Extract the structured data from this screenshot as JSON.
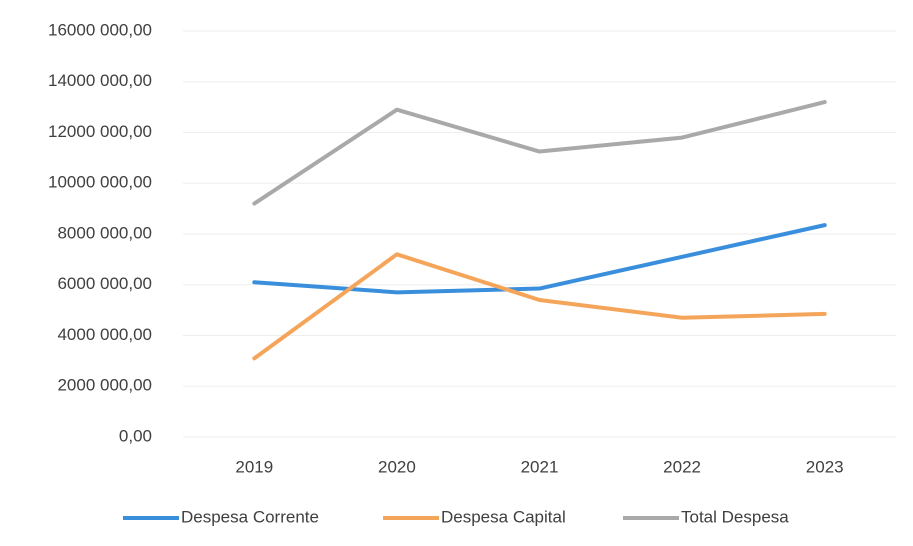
{
  "chart_data": {
    "type": "line",
    "categories": [
      "2019",
      "2020",
      "2021",
      "2022",
      "2023"
    ],
    "series": [
      {
        "name": "Despesa Corrente",
        "color": "#3a8fdc",
        "values": [
          6100000,
          5700000,
          5850000,
          7100000,
          8350000
        ]
      },
      {
        "name": "Despesa Capital",
        "color": "#f5a55a",
        "values": [
          3100000,
          7200000,
          5400000,
          4700000,
          4850000
        ]
      },
      {
        "name": "Total Despesa",
        "color": "#a9a9a9",
        "values": [
          9200000,
          12900000,
          11250000,
          11800000,
          13200000
        ]
      }
    ],
    "ylim": [
      0,
      16000000
    ],
    "yticks": [
      {
        "value": 0,
        "label": "0,00"
      },
      {
        "value": 2000000,
        "label": "2000 000,00"
      },
      {
        "value": 4000000,
        "label": "4000 000,00"
      },
      {
        "value": 6000000,
        "label": "6000 000,00"
      },
      {
        "value": 8000000,
        "label": "8000 000,00"
      },
      {
        "value": 10000000,
        "label": "10000 000,00"
      },
      {
        "value": 12000000,
        "label": "12000 000,00"
      },
      {
        "value": 14000000,
        "label": "14000 000,00"
      },
      {
        "value": 16000000,
        "label": "16000 000,00"
      }
    ],
    "grid": true,
    "legend": "bottom"
  }
}
